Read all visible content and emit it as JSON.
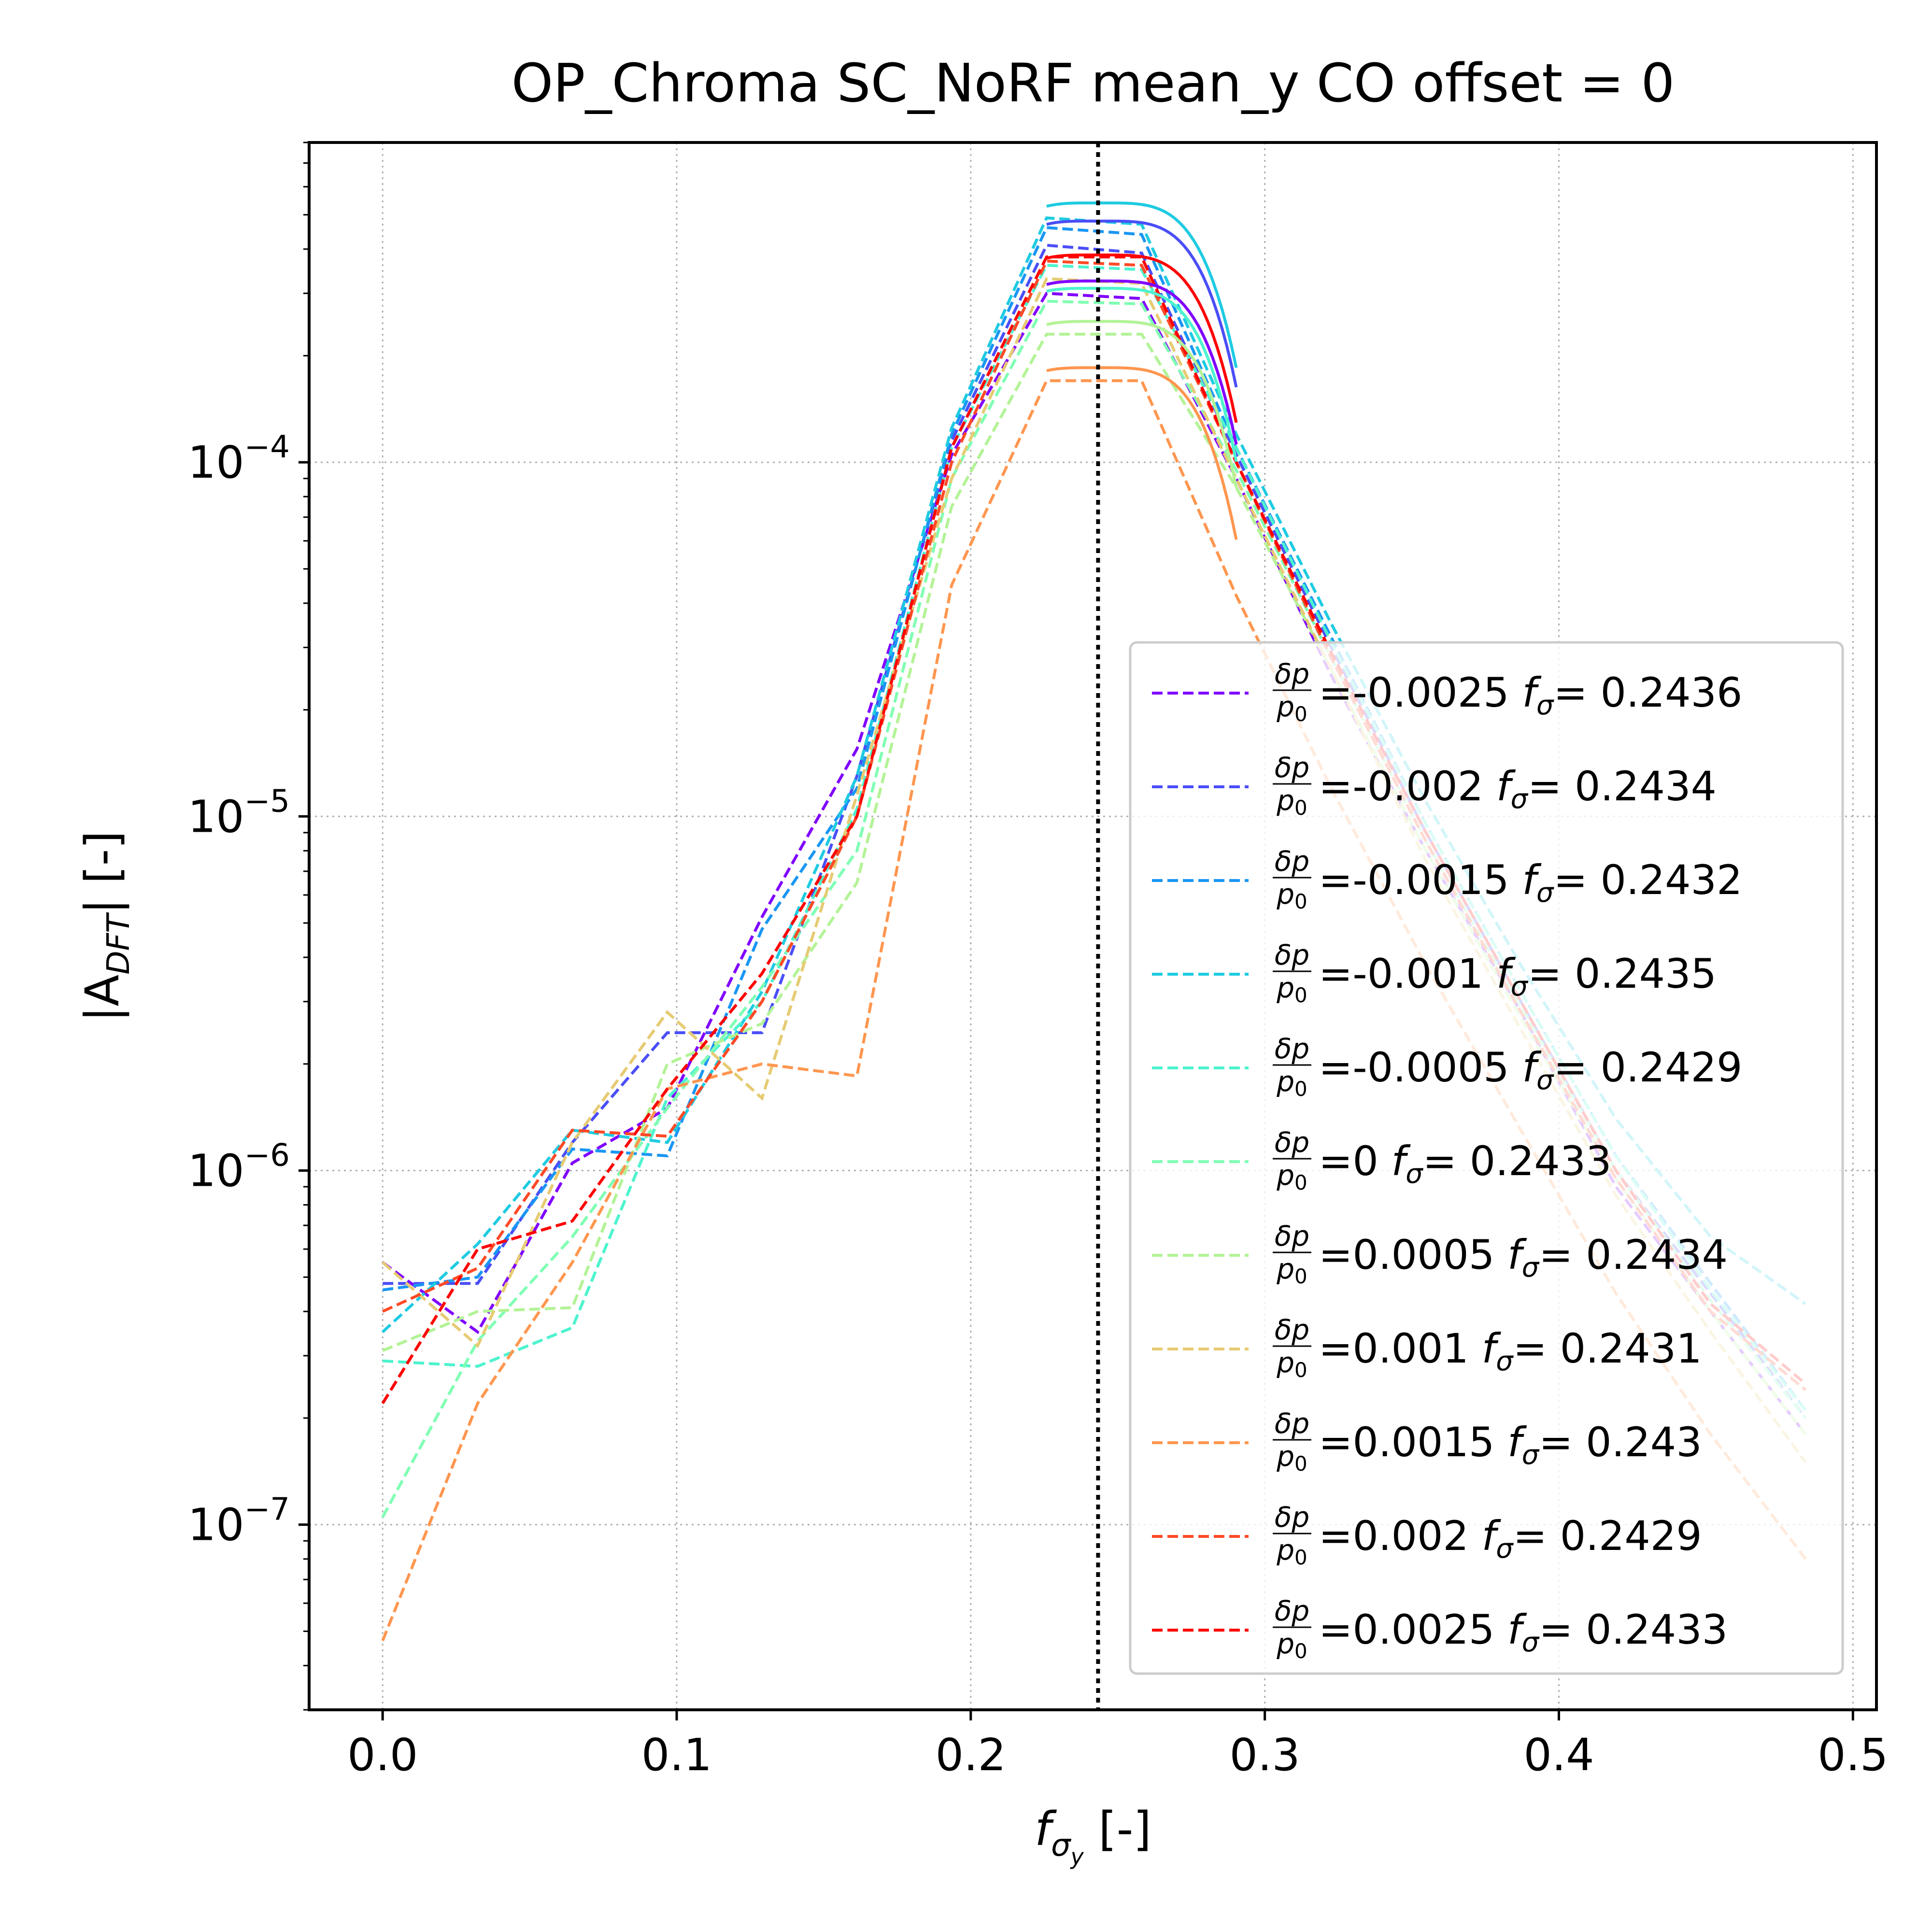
{
  "chart_data": {
    "type": "line",
    "title": "OP_Chroma SC_NoRF mean_y  CO offset = 0",
    "xlabel": {
      "main": "f",
      "sub": "σ",
      "subsub": "y",
      "suffix": " [-]"
    },
    "ylabel": {
      "pre": "|A",
      "sub": "DFT",
      "post": "| [-]"
    },
    "yscale": "log",
    "xlim": [
      -0.025,
      0.508
    ],
    "ylim": [
      3e-08,
      0.0008
    ],
    "xticks": [
      {
        "v": 0.0,
        "label": "0.0"
      },
      {
        "v": 0.1,
        "label": "0.1"
      },
      {
        "v": 0.2,
        "label": "0.2"
      },
      {
        "v": 0.3,
        "label": "0.3"
      },
      {
        "v": 0.4,
        "label": "0.4"
      },
      {
        "v": 0.5,
        "label": "0.5"
      }
    ],
    "yticks": [
      {
        "v": 0.0001,
        "base": "10",
        "exp": "−4"
      },
      {
        "v": 1e-05,
        "base": "10",
        "exp": "−5"
      },
      {
        "v": 1e-06,
        "base": "10",
        "exp": "−6"
      },
      {
        "v": 1e-07,
        "base": "10",
        "exp": "−7"
      }
    ],
    "grid": true,
    "legend_position": "lower-right",
    "vline": {
      "x": 0.2433,
      "color": "#000000",
      "style": "dotted"
    },
    "series": [
      {
        "name": "=-0.0025 f_σ= 0.2436",
        "dp": "=-0.0025",
        "fs": "0.2436",
        "color": "#8000ff",
        "x": [
          0,
          0.0323,
          0.0645,
          0.0968,
          0.129,
          0.1613,
          0.1935,
          0.2258,
          0.2581,
          0.2903,
          0.3226,
          0.3548,
          0.3871,
          0.4194,
          0.4516,
          0.4839
        ],
        "y": [
          5.5e-07,
          3.5e-07,
          1.05e-06,
          1.5e-06,
          5.2e-06,
          1.55e-05,
          0.000105,
          0.0003,
          0.00029,
          9e-05,
          2.5e-05,
          8e-06,
          2.8e-06,
          9e-07,
          4e-07,
          1.8e-07
        ]
      },
      {
        "name": "=-0.002 f_σ= 0.2434",
        "dp": "=-0.002",
        "fs": "0.2434",
        "color": "#4a4ef7",
        "x": [
          0,
          0.0323,
          0.0645,
          0.0968,
          0.129,
          0.1613,
          0.1935,
          0.2258,
          0.2581,
          0.2903,
          0.3226,
          0.3548,
          0.3871,
          0.4194,
          0.4516,
          0.4839
        ],
        "y": [
          4.8e-07,
          4.8e-07,
          1.2e-06,
          2.45e-06,
          2.45e-06,
          1.3e-05,
          0.000115,
          0.00041,
          0.00039,
          0.000105,
          3e-05,
          9e-06,
          3e-06,
          1e-06,
          4.5e-07,
          2e-07
        ]
      },
      {
        "name": "=-0.0015 f_σ= 0.2432",
        "dp": "=-0.0015",
        "fs": "0.2432",
        "color": "#1996f3",
        "x": [
          0,
          0.0323,
          0.0645,
          0.0968,
          0.129,
          0.1613,
          0.1935,
          0.2258,
          0.2581,
          0.2903,
          0.3226,
          0.3548,
          0.3871,
          0.4194,
          0.4516,
          0.4839
        ],
        "y": [
          4.6e-07,
          5e-07,
          1.15e-06,
          1.1e-06,
          4.8e-06,
          1.2e-05,
          0.00012,
          0.00046,
          0.00044,
          0.00011,
          3.2e-05,
          9.5e-06,
          3.2e-06,
          1.1e-06,
          4.8e-07,
          2.1e-07
        ]
      },
      {
        "name": "=-0.001 f_σ= 0.2435",
        "dp": "=-0.001",
        "fs": "0.2435",
        "color": "#1ecbe1",
        "x": [
          0,
          0.0323,
          0.0645,
          0.0968,
          0.129,
          0.1613,
          0.1935,
          0.2258,
          0.2581,
          0.2903,
          0.3226,
          0.3548,
          0.3871,
          0.4194,
          0.4516,
          0.4839
        ],
        "y": [
          3.5e-07,
          6.2e-07,
          1.3e-06,
          1.2e-06,
          3.2e-06,
          1.3e-05,
          0.000125,
          0.00049,
          0.00047,
          0.00012,
          3.5e-05,
          1.1e-05,
          3.8e-06,
          1.4e-06,
          6.5e-07,
          4.2e-07
        ]
      },
      {
        "name": "=-0.0005 f_σ= 0.2429",
        "dp": "=-0.0005",
        "fs": "0.2429",
        "color": "#4df3ce",
        "x": [
          0,
          0.0323,
          0.0645,
          0.0968,
          0.129,
          0.1613,
          0.1935,
          0.2258,
          0.2581,
          0.2903,
          0.3226,
          0.3548,
          0.3871,
          0.4194,
          0.4516,
          0.4839
        ],
        "y": [
          2.9e-07,
          2.8e-07,
          3.6e-07,
          1.6e-06,
          3e-06,
          1.05e-05,
          0.00011,
          0.00036,
          0.00035,
          0.00011,
          3.1e-05,
          9.5e-06,
          3.2e-06,
          1.1e-06,
          4.6e-07,
          2.1e-07
        ]
      },
      {
        "name": "=0 f_σ= 0.2433",
        "dp": "=0",
        "fs": "0.2433",
        "color": "#80ffb4",
        "x": [
          0,
          0.0323,
          0.0645,
          0.0968,
          0.129,
          0.1613,
          0.1935,
          0.2258,
          0.2581,
          0.2903,
          0.3226,
          0.3548,
          0.3871,
          0.4194,
          0.4516,
          0.4839
        ],
        "y": [
          1.05e-07,
          3.3e-07,
          6.5e-07,
          1.5e-06,
          3.3e-06,
          8e-06,
          9e-05,
          0.000285,
          0.00028,
          9.5e-05,
          2.8e-05,
          8.5e-06,
          2.9e-06,
          1e-06,
          4.3e-07,
          2e-07
        ]
      },
      {
        "name": "=0.0005 f_σ= 0.2434",
        "dp": "=0.0005",
        "fs": "0.2434",
        "color": "#b3f396",
        "x": [
          0,
          0.0323,
          0.0645,
          0.0968,
          0.129,
          0.1613,
          0.1935,
          0.2258,
          0.2581,
          0.2903,
          0.3226,
          0.3548,
          0.3871,
          0.4194,
          0.4516,
          0.4839
        ],
        "y": [
          3.1e-07,
          4e-07,
          4.1e-07,
          2e-06,
          2.6e-06,
          6.5e-06,
          7.5e-05,
          0.00023,
          0.00023,
          8.5e-05,
          2.6e-05,
          8e-06,
          2.7e-06,
          9.5e-07,
          4e-07,
          1.8e-07
        ]
      },
      {
        "name": "=0.001 f_σ= 0.2431",
        "dp": "=0.001",
        "fs": "0.2431",
        "color": "#e6cb73",
        "x": [
          0,
          0.0323,
          0.0645,
          0.0968,
          0.129,
          0.1613,
          0.1935,
          0.2258,
          0.2581,
          0.2903,
          0.3226,
          0.3548,
          0.3871,
          0.4194,
          0.4516,
          0.4839
        ],
        "y": [
          5.5e-07,
          3.2e-07,
          1.2e-06,
          2.8e-06,
          1.6e-06,
          1.15e-05,
          9e-05,
          0.00033,
          0.00032,
          9e-05,
          2.6e-05,
          7.5e-06,
          2.5e-06,
          8.5e-07,
          3.5e-07,
          1.5e-07
        ]
      },
      {
        "name": "=0.0015 f_σ= 0.243",
        "dp": "=0.0015",
        "fs": "0.243",
        "color": "#ff964f",
        "x": [
          0,
          0.0323,
          0.0645,
          0.0968,
          0.129,
          0.1613,
          0.1935,
          0.2258,
          0.2581,
          0.2903,
          0.3226,
          0.3548,
          0.3871,
          0.4194,
          0.4516,
          0.4839
        ],
        "y": [
          4.7e-08,
          2.2e-07,
          5.5e-07,
          1.7e-06,
          2e-06,
          1.85e-06,
          4.5e-05,
          0.00017,
          0.00017,
          4.2e-05,
          1.2e-05,
          3.8e-06,
          1.3e-06,
          4.5e-07,
          1.8e-07,
          8e-08
        ]
      },
      {
        "name": "=0.002 f_σ= 0.2429",
        "dp": "=0.002",
        "fs": "0.2429",
        "color": "#ff4a27",
        "x": [
          0,
          0.0323,
          0.0645,
          0.0968,
          0.129,
          0.1613,
          0.1935,
          0.2258,
          0.2581,
          0.2903,
          0.3226,
          0.3548,
          0.3871,
          0.4194,
          0.4516,
          0.4839
        ],
        "y": [
          4e-07,
          5.3e-07,
          1.3e-06,
          1.25e-06,
          3e-06,
          1e-05,
          0.0001,
          0.00037,
          0.00036,
          0.0001,
          2.8e-05,
          8.5e-06,
          2.8e-06,
          9.5e-07,
          4e-07,
          2.4e-07
        ]
      },
      {
        "name": "=0.0025 f_σ= 0.2433",
        "dp": "=0.0025",
        "fs": "0.2433",
        "color": "#ff0000",
        "x": [
          0,
          0.0323,
          0.0645,
          0.0968,
          0.129,
          0.1613,
          0.1935,
          0.2258,
          0.2581,
          0.2903,
          0.3226,
          0.3548,
          0.3871,
          0.4194,
          0.4516,
          0.4839
        ],
        "y": [
          2.2e-07,
          6e-07,
          7.2e-07,
          1.7e-06,
          3.6e-06,
          1e-05,
          0.00011,
          0.00038,
          0.00038,
          0.0001,
          2.9e-05,
          9e-06,
          3e-06,
          1e-06,
          4.2e-07,
          2.5e-07
        ]
      }
    ],
    "solid_peaks": [
      {
        "color": "#8000ff",
        "amp": 0.000325,
        "f0": 0.2436
      },
      {
        "color": "#4a4ef7",
        "amp": 0.00048,
        "f0": 0.2434
      },
      {
        "color": "#1ecbe1",
        "amp": 0.00054,
        "f0": 0.2435
      },
      {
        "color": "#4df3ce",
        "amp": 0.00031,
        "f0": 0.2429
      },
      {
        "color": "#b3f396",
        "amp": 0.00025,
        "f0": 0.2434
      },
      {
        "color": "#ff964f",
        "amp": 0.000185,
        "f0": 0.243
      },
      {
        "color": "#ff0000",
        "amp": 0.000385,
        "f0": 0.2433
      }
    ]
  }
}
